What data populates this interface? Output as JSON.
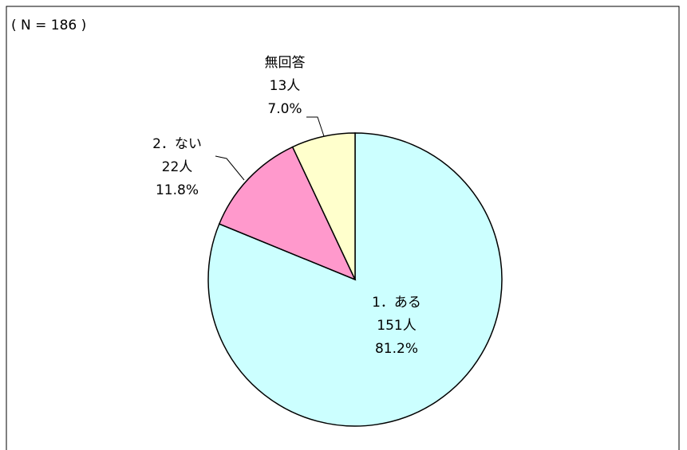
{
  "chart_data": {
    "type": "pie",
    "title": "( N = 186 )",
    "categories": [
      "1．ある",
      "2．ない",
      "無回答"
    ],
    "values": [
      81.2,
      11.8,
      7.0
    ],
    "value_labels": [
      "81.2%",
      "11.8%",
      "7.0%"
    ],
    "counts": [
      151,
      22,
      13
    ],
    "count_labels": [
      "151人",
      "22人",
      "13人"
    ],
    "colors": [
      "#ccffff",
      "#ff99cc",
      "#ffffcc"
    ]
  }
}
